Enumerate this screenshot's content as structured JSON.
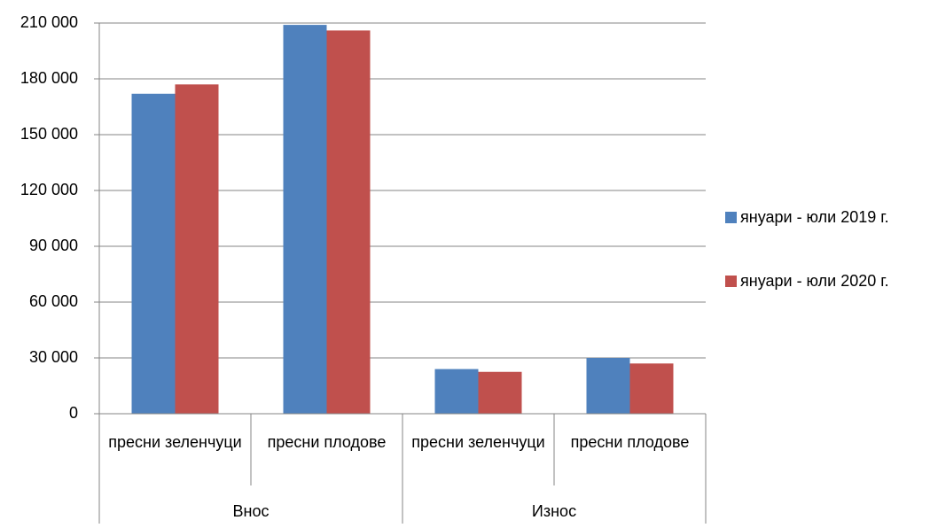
{
  "chart_data": {
    "type": "bar",
    "groups": [
      {
        "name": "Внос",
        "categories": [
          "пресни зеленчуци",
          "пресни плодове"
        ]
      },
      {
        "name": "Износ",
        "categories": [
          "пресни зеленчуци",
          "пресни плодове"
        ]
      }
    ],
    "series": [
      {
        "name": "януари - юли 2019 г.",
        "color": "#4f81bd",
        "values": [
          172000,
          209000,
          24000,
          30000
        ]
      },
      {
        "name": "януари - юли 2020 г.",
        "color": "#c0504d",
        "values": [
          177000,
          206000,
          22500,
          27000
        ]
      }
    ],
    "ylim": [
      0,
      210000
    ],
    "yticks": [
      0,
      {
        "value": 30000,
        "label": "30 000"
      },
      {
        "value": 60000,
        "label": "60 000"
      },
      {
        "value": 90000,
        "label": "90 000"
      },
      {
        "value": 120000,
        "label": "120 000"
      },
      {
        "value": 150000,
        "label": "150 000"
      },
      {
        "value": 180000,
        "label": "180 000"
      },
      {
        "value": 210000,
        "label": "210 000"
      }
    ],
    "grid": true,
    "legend": "right"
  }
}
